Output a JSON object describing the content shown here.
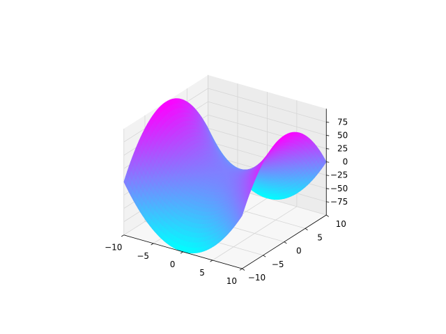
{
  "chart_data": {
    "type": "surface",
    "function": "z = x^2 - y^2",
    "title": "",
    "xlabel": "",
    "ylabel": "",
    "zlabel": "",
    "x_range": [
      -10,
      10
    ],
    "y_range": [
      -10,
      10
    ],
    "z_range": [
      -100,
      100
    ],
    "x_ticks": [
      "−10",
      "−5",
      "0",
      "5",
      "10"
    ],
    "x_tick_values": [
      -10,
      -5,
      0,
      5,
      10
    ],
    "y_ticks": [
      "−10",
      "−5",
      "0",
      "5",
      "10"
    ],
    "y_tick_values": [
      -10,
      -5,
      0,
      5,
      10
    ],
    "z_ticks": [
      "−75",
      "−50",
      "−25",
      "0",
      "25",
      "50",
      "75"
    ],
    "z_tick_values": [
      -75,
      -50,
      -25,
      0,
      25,
      50,
      75
    ],
    "colormap": "cool",
    "colormap_low": "#00ffff",
    "colormap_high": "#ff00ff",
    "grid": true,
    "pane_color": "#f2f2f2",
    "grid_color": "#d6d6d6"
  }
}
